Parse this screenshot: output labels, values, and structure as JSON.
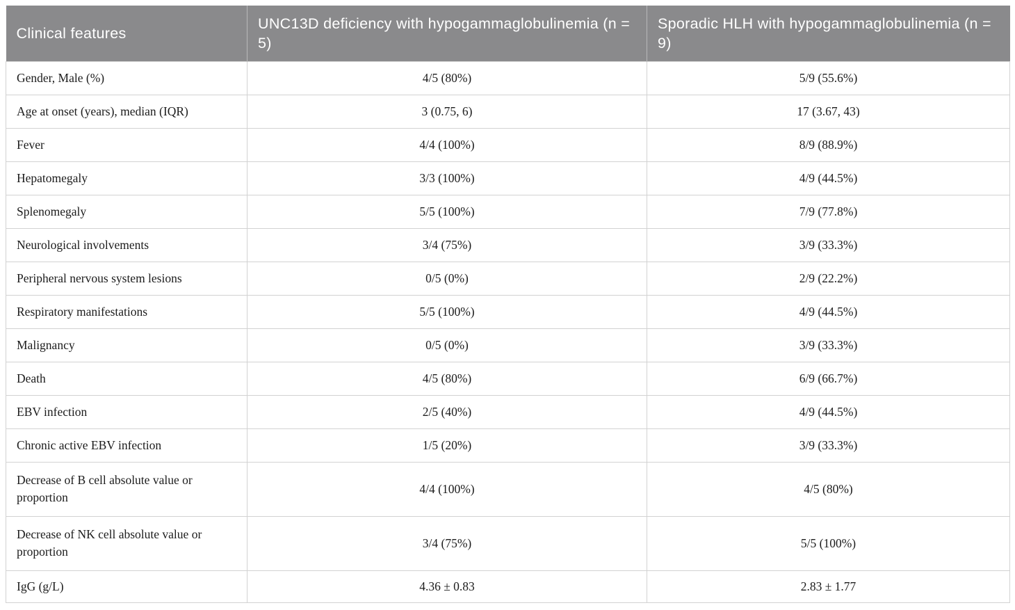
{
  "colors": {
    "header_bg": "#8a8a8c",
    "header_text": "#ffffff",
    "body_text": "#1c1c1c",
    "border": "#d2d2d2"
  },
  "table": {
    "columns": [
      "Clinical features",
      "UNC13D deficiency with hypogammaglobulinemia (n = 5)",
      "Sporadic HLH with hypogammaglobulinemia (n = 9)"
    ],
    "rows": [
      [
        "Gender, Male (%)",
        "4/5 (80%)",
        "5/9 (55.6%)"
      ],
      [
        "Age at onset (years), median (IQR)",
        "3 (0.75, 6)",
        "17 (3.67, 43)"
      ],
      [
        "Fever",
        "4/4 (100%)",
        "8/9 (88.9%)"
      ],
      [
        "Hepatomegaly",
        "3/3 (100%)",
        "4/9 (44.5%)"
      ],
      [
        "Splenomegaly",
        "5/5 (100%)",
        "7/9 (77.8%)"
      ],
      [
        "Neurological involvements",
        "3/4 (75%)",
        "3/9 (33.3%)"
      ],
      [
        "Peripheral nervous system lesions",
        "0/5 (0%)",
        "2/9 (22.2%)"
      ],
      [
        "Respiratory manifestations",
        "5/5 (100%)",
        "4/9 (44.5%)"
      ],
      [
        "Malignancy",
        "0/5 (0%)",
        "3/9 (33.3%)"
      ],
      [
        "Death",
        "4/5 (80%)",
        "6/9 (66.7%)"
      ],
      [
        "EBV infection",
        "2/5 (40%)",
        "4/9 (44.5%)"
      ],
      [
        "Chronic active EBV infection",
        "1/5 (20%)",
        "3/9 (33.3%)"
      ],
      [
        "Decrease of B cell absolute value or proportion",
        "4/4 (100%)",
        "4/5 (80%)"
      ],
      [
        "Decrease of NK cell absolute value or proportion",
        "3/4 (75%)",
        "5/5 (100%)"
      ],
      [
        "IgG (g/L)",
        "4.36 ± 0.83",
        "2.83 ± 1.77"
      ]
    ]
  }
}
